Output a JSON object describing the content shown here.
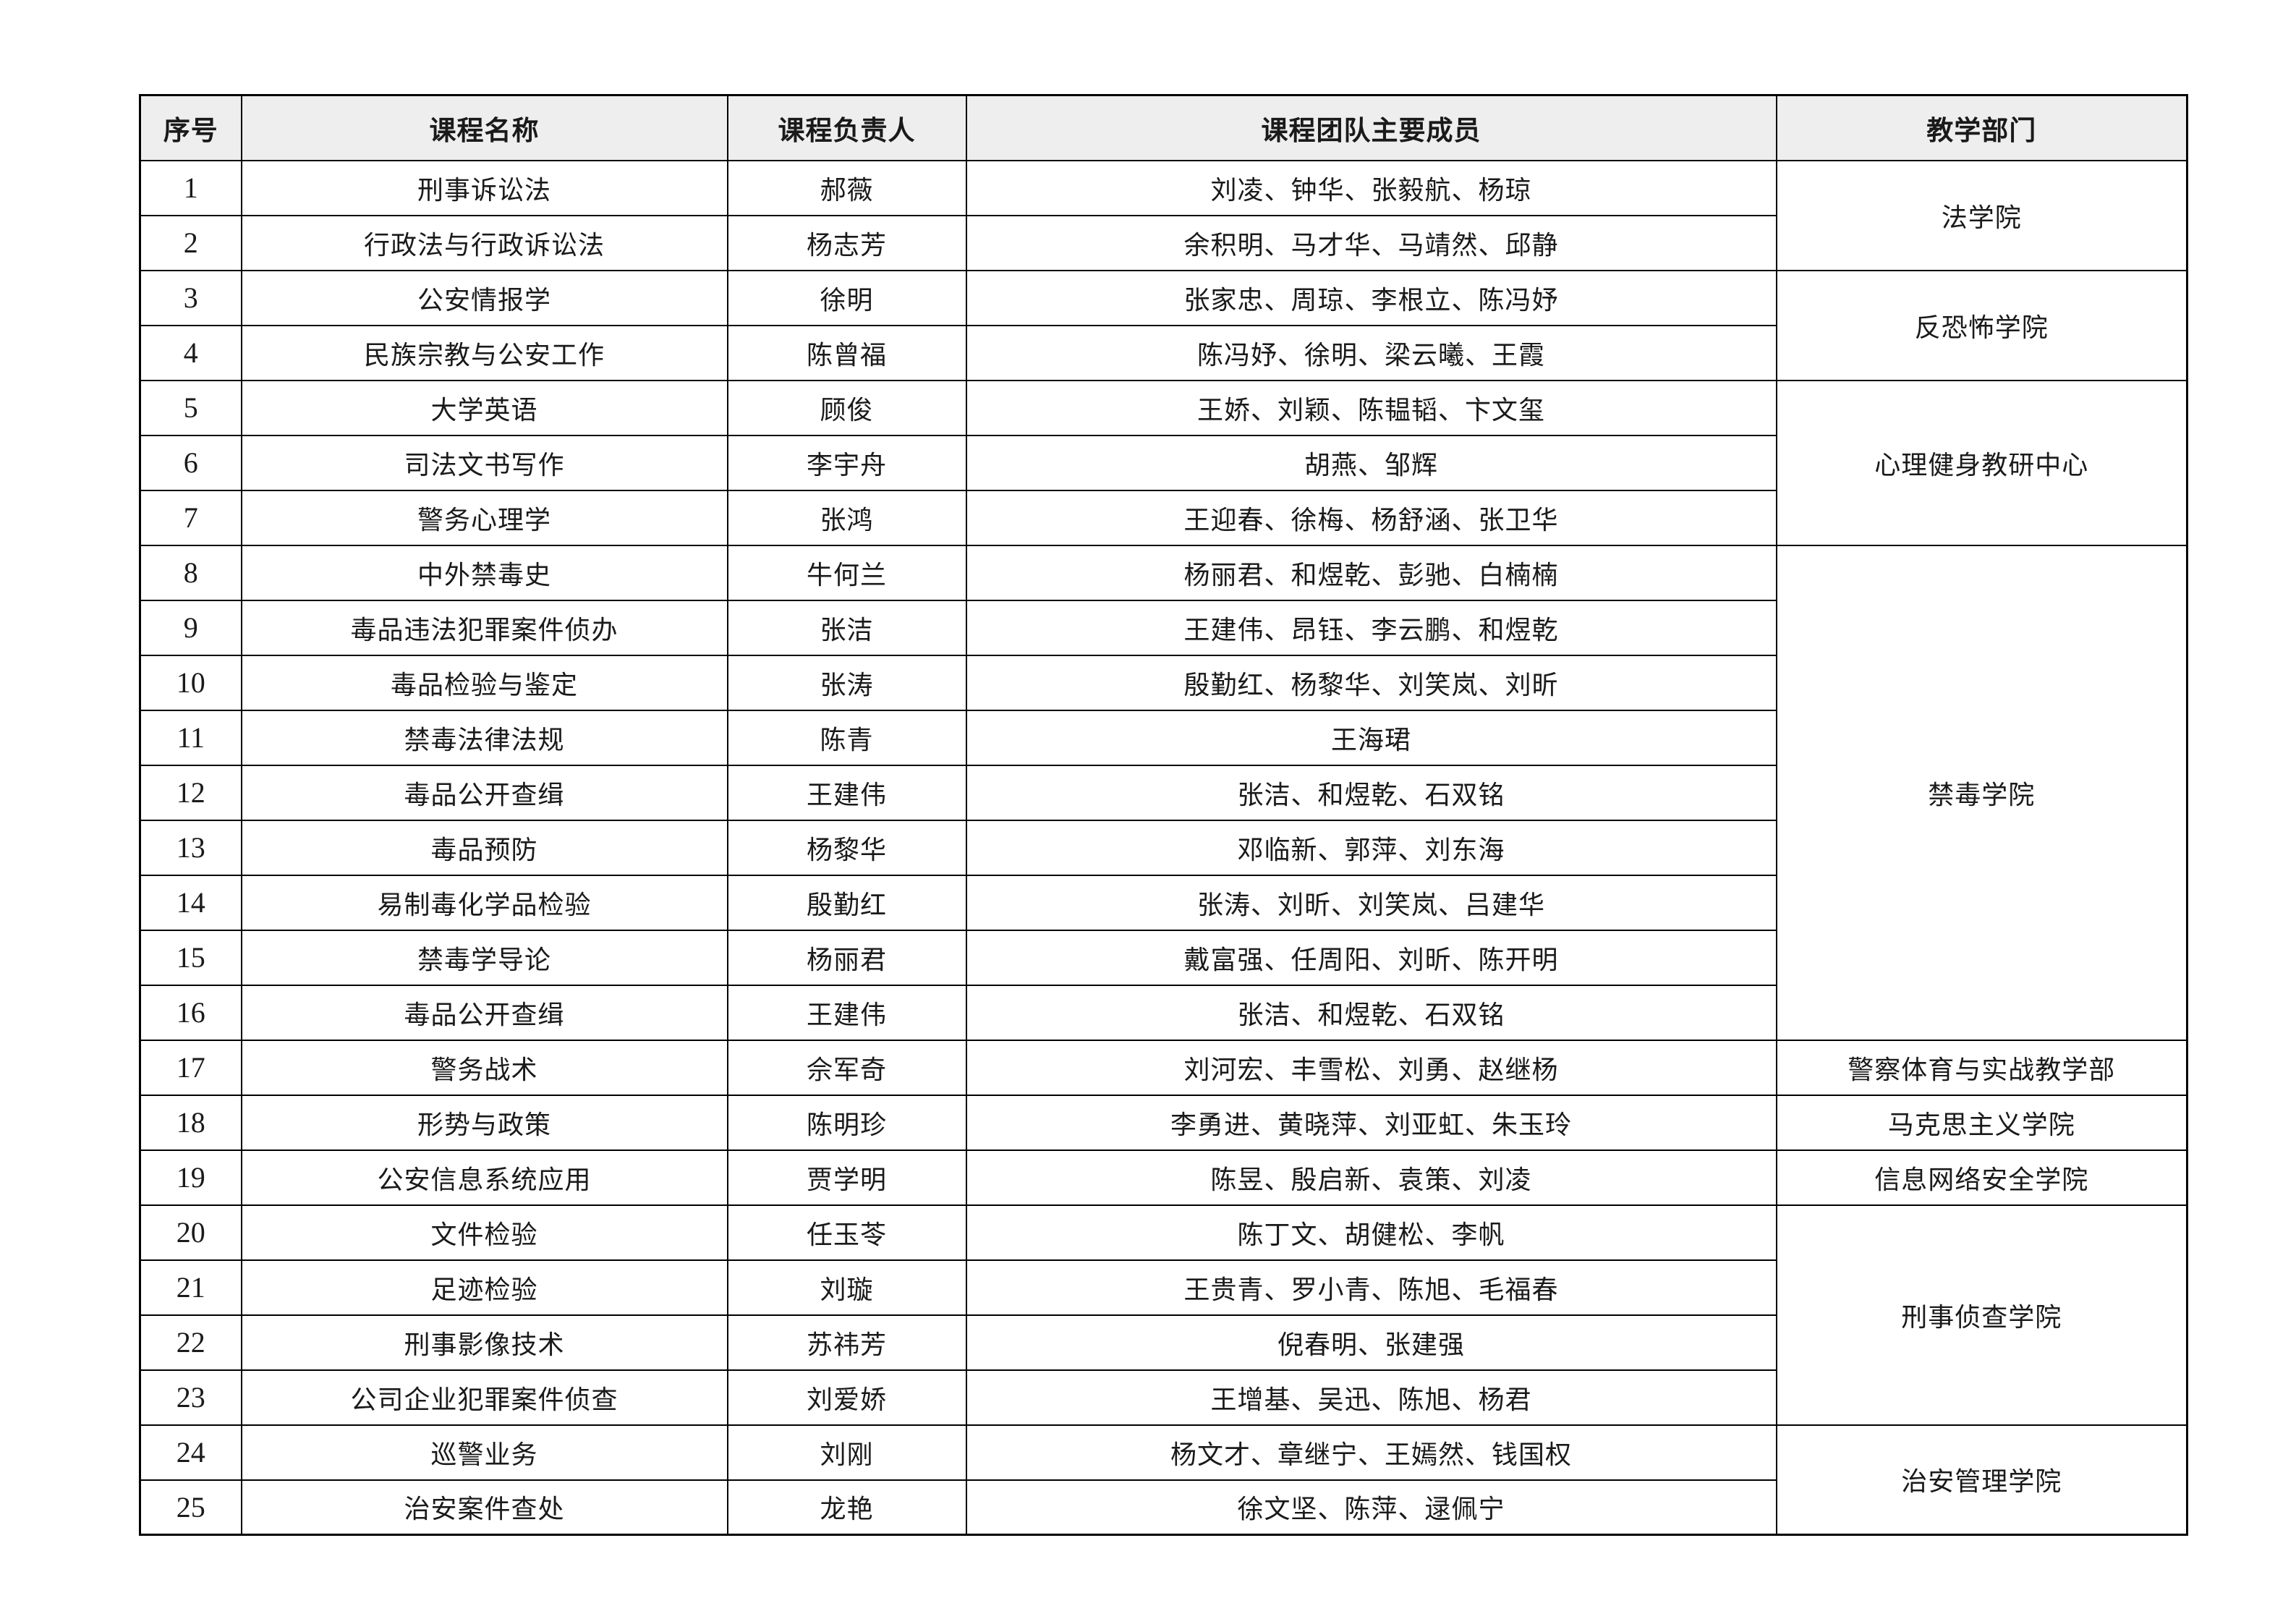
{
  "table": {
    "header_bg": "#eeeeee",
    "border_color": "#000000",
    "columns": [
      "序号",
      "课程名称",
      "课程负责人",
      "课程团队主要成员",
      "教学部门"
    ],
    "rows": [
      {
        "no": "1",
        "course": "刑事诉讼法",
        "leader": "郝薇",
        "members": "刘凌、钟华、张毅航、杨琼",
        "department": "法学院",
        "dept_rowspan": 2
      },
      {
        "no": "2",
        "course": "行政法与行政诉讼法",
        "leader": "杨志芳",
        "members": "余积明、马才华、马靖然、邱静"
      },
      {
        "no": "3",
        "course": "公安情报学",
        "leader": "徐明",
        "members": "张家忠、周琼、李根立、陈冯妤",
        "department": "反恐怖学院",
        "dept_rowspan": 2
      },
      {
        "no": "4",
        "course": "民族宗教与公安工作",
        "leader": "陈曾福",
        "members": "陈冯妤、徐明、梁云曦、王霞"
      },
      {
        "no": "5",
        "course": "大学英语",
        "leader": "顾俊",
        "members": "王娇、刘颖、陈韫韬、卞文玺",
        "department": "心理健身教研中心",
        "dept_rowspan": 3
      },
      {
        "no": "6",
        "course": "司法文书写作",
        "leader": "李宇舟",
        "members": "胡燕、邹辉"
      },
      {
        "no": "7",
        "course": "警务心理学",
        "leader": "张鸿",
        "members": "王迎春、徐梅、杨舒涵、张卫华"
      },
      {
        "no": "8",
        "course": "中外禁毒史",
        "leader": "牛何兰",
        "members": "杨丽君、和煜乾、彭驰、白楠楠",
        "department": "禁毒学院",
        "dept_rowspan": 9
      },
      {
        "no": "9",
        "course": "毒品违法犯罪案件侦办",
        "leader": "张洁",
        "members": "王建伟、昂钰、李云鹏、和煜乾"
      },
      {
        "no": "10",
        "course": "毒品检验与鉴定",
        "leader": "张涛",
        "members": "殷勤红、杨黎华、刘笑岚、刘昕"
      },
      {
        "no": "11",
        "course": "禁毒法律法规",
        "leader": "陈青",
        "members": "王海珺"
      },
      {
        "no": "12",
        "course": "毒品公开查缉",
        "leader": "王建伟",
        "members": "张洁、和煜乾、石双铭"
      },
      {
        "no": "13",
        "course": "毒品预防",
        "leader": "杨黎华",
        "members": "邓临新、郭萍、刘东海"
      },
      {
        "no": "14",
        "course": "易制毒化学品检验",
        "leader": "殷勤红",
        "members": "张涛、刘昕、刘笑岚、吕建华"
      },
      {
        "no": "15",
        "course": "禁毒学导论",
        "leader": "杨丽君",
        "members": "戴富强、任周阳、刘昕、陈开明"
      },
      {
        "no": "16",
        "course": "毒品公开查缉",
        "leader": "王建伟",
        "members": "张洁、和煜乾、石双铭"
      },
      {
        "no": "17",
        "course": "警务战术",
        "leader": "佘军奇",
        "members": "刘河宏、丰雪松、刘勇、赵继杨",
        "department": "警察体育与实战教学部",
        "dept_rowspan": 1
      },
      {
        "no": "18",
        "course": "形势与政策",
        "leader": "陈明珍",
        "members": "李勇进、黄晓萍、刘亚虹、朱玉玲",
        "department": "马克思主义学院",
        "dept_rowspan": 1
      },
      {
        "no": "19",
        "course": "公安信息系统应用",
        "leader": "贾学明",
        "members": "陈昱、殷启新、袁策、刘凌",
        "department": "信息网络安全学院",
        "dept_rowspan": 1
      },
      {
        "no": "20",
        "course": "文件检验",
        "leader": "任玉苓",
        "members": "陈丁文、胡健松、李帆",
        "department": "刑事侦查学院",
        "dept_rowspan": 4
      },
      {
        "no": "21",
        "course": "足迹检验",
        "leader": "刘璇",
        "members": "王贵青、罗小青、陈旭、毛福春"
      },
      {
        "no": "22",
        "course": "刑事影像技术",
        "leader": "苏祎芳",
        "members": "倪春明、张建强"
      },
      {
        "no": "23",
        "course": "公司企业犯罪案件侦查",
        "leader": "刘爱娇",
        "members": "王增基、吴迅、陈旭、杨君"
      },
      {
        "no": "24",
        "course": "巡警业务",
        "leader": "刘刚",
        "members": "杨文才、章继宁、王嫣然、钱国权",
        "department": "治安管理学院",
        "dept_rowspan": 2
      },
      {
        "no": "25",
        "course": "治安案件查处",
        "leader": "龙艳",
        "members": "徐文坚、陈萍、逯佩宁"
      }
    ]
  }
}
